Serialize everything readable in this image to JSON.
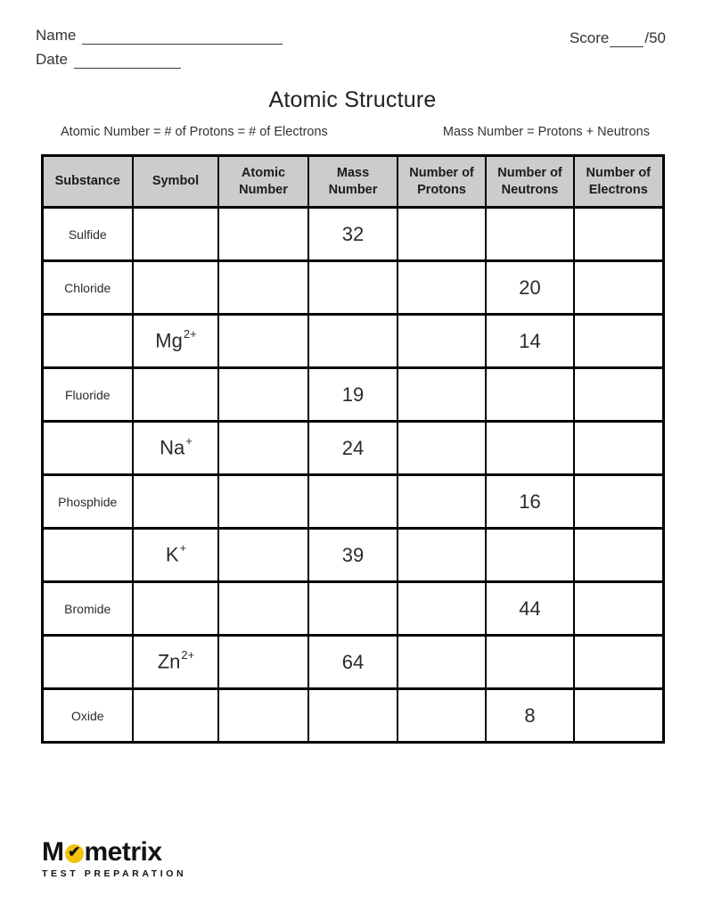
{
  "page": {
    "name_label": "Name",
    "date_label": "Date",
    "score_label": "Score",
    "score_total": "/50",
    "title": "Atomic Structure",
    "hint_left": "Atomic Number = # of Protons = # of Electrons",
    "hint_right": "Mass Number = Protons + Neutrons"
  },
  "table": {
    "headers": [
      "Substance",
      "Symbol",
      "Atomic Number",
      "Mass Number",
      "Number of Protons",
      "Number of Neutrons",
      "Number of Electrons"
    ],
    "rows": [
      {
        "substance": "Sulfide",
        "symbol": "",
        "symbol_sup": "",
        "atomic_number": "",
        "mass_number": "32",
        "protons": "",
        "neutrons": "",
        "electrons": ""
      },
      {
        "substance": "Chloride",
        "symbol": "",
        "symbol_sup": "",
        "atomic_number": "",
        "mass_number": "",
        "protons": "",
        "neutrons": "20",
        "electrons": ""
      },
      {
        "substance": "",
        "symbol": "Mg",
        "symbol_sup": "2+",
        "atomic_number": "",
        "mass_number": "",
        "protons": "",
        "neutrons": "14",
        "electrons": ""
      },
      {
        "substance": "Fluoride",
        "symbol": "",
        "symbol_sup": "",
        "atomic_number": "",
        "mass_number": "19",
        "protons": "",
        "neutrons": "",
        "electrons": ""
      },
      {
        "substance": "",
        "symbol": "Na",
        "symbol_sup": "+",
        "atomic_number": "",
        "mass_number": "24",
        "protons": "",
        "neutrons": "",
        "electrons": ""
      },
      {
        "substance": "Phosphide",
        "symbol": "",
        "symbol_sup": "",
        "atomic_number": "",
        "mass_number": "",
        "protons": "",
        "neutrons": "16",
        "electrons": ""
      },
      {
        "substance": "",
        "symbol": "K",
        "symbol_sup": "+",
        "atomic_number": "",
        "mass_number": "39",
        "protons": "",
        "neutrons": "",
        "electrons": ""
      },
      {
        "substance": "Bromide",
        "symbol": "",
        "symbol_sup": "",
        "atomic_number": "",
        "mass_number": "",
        "protons": "",
        "neutrons": "44",
        "electrons": ""
      },
      {
        "substance": "",
        "symbol": "Zn",
        "symbol_sup": "2+",
        "atomic_number": "",
        "mass_number": "64",
        "protons": "",
        "neutrons": "",
        "electrons": ""
      },
      {
        "substance": "Oxide",
        "symbol": "",
        "symbol_sup": "",
        "atomic_number": "",
        "mass_number": "",
        "protons": "",
        "neutrons": "8",
        "electrons": ""
      }
    ]
  },
  "logo": {
    "brand_prefix": "M",
    "brand_suffix": "metrix",
    "tagline": "TEST PREPARATION",
    "check_icon": "✔",
    "accent_yellow": "#F4C10F"
  }
}
